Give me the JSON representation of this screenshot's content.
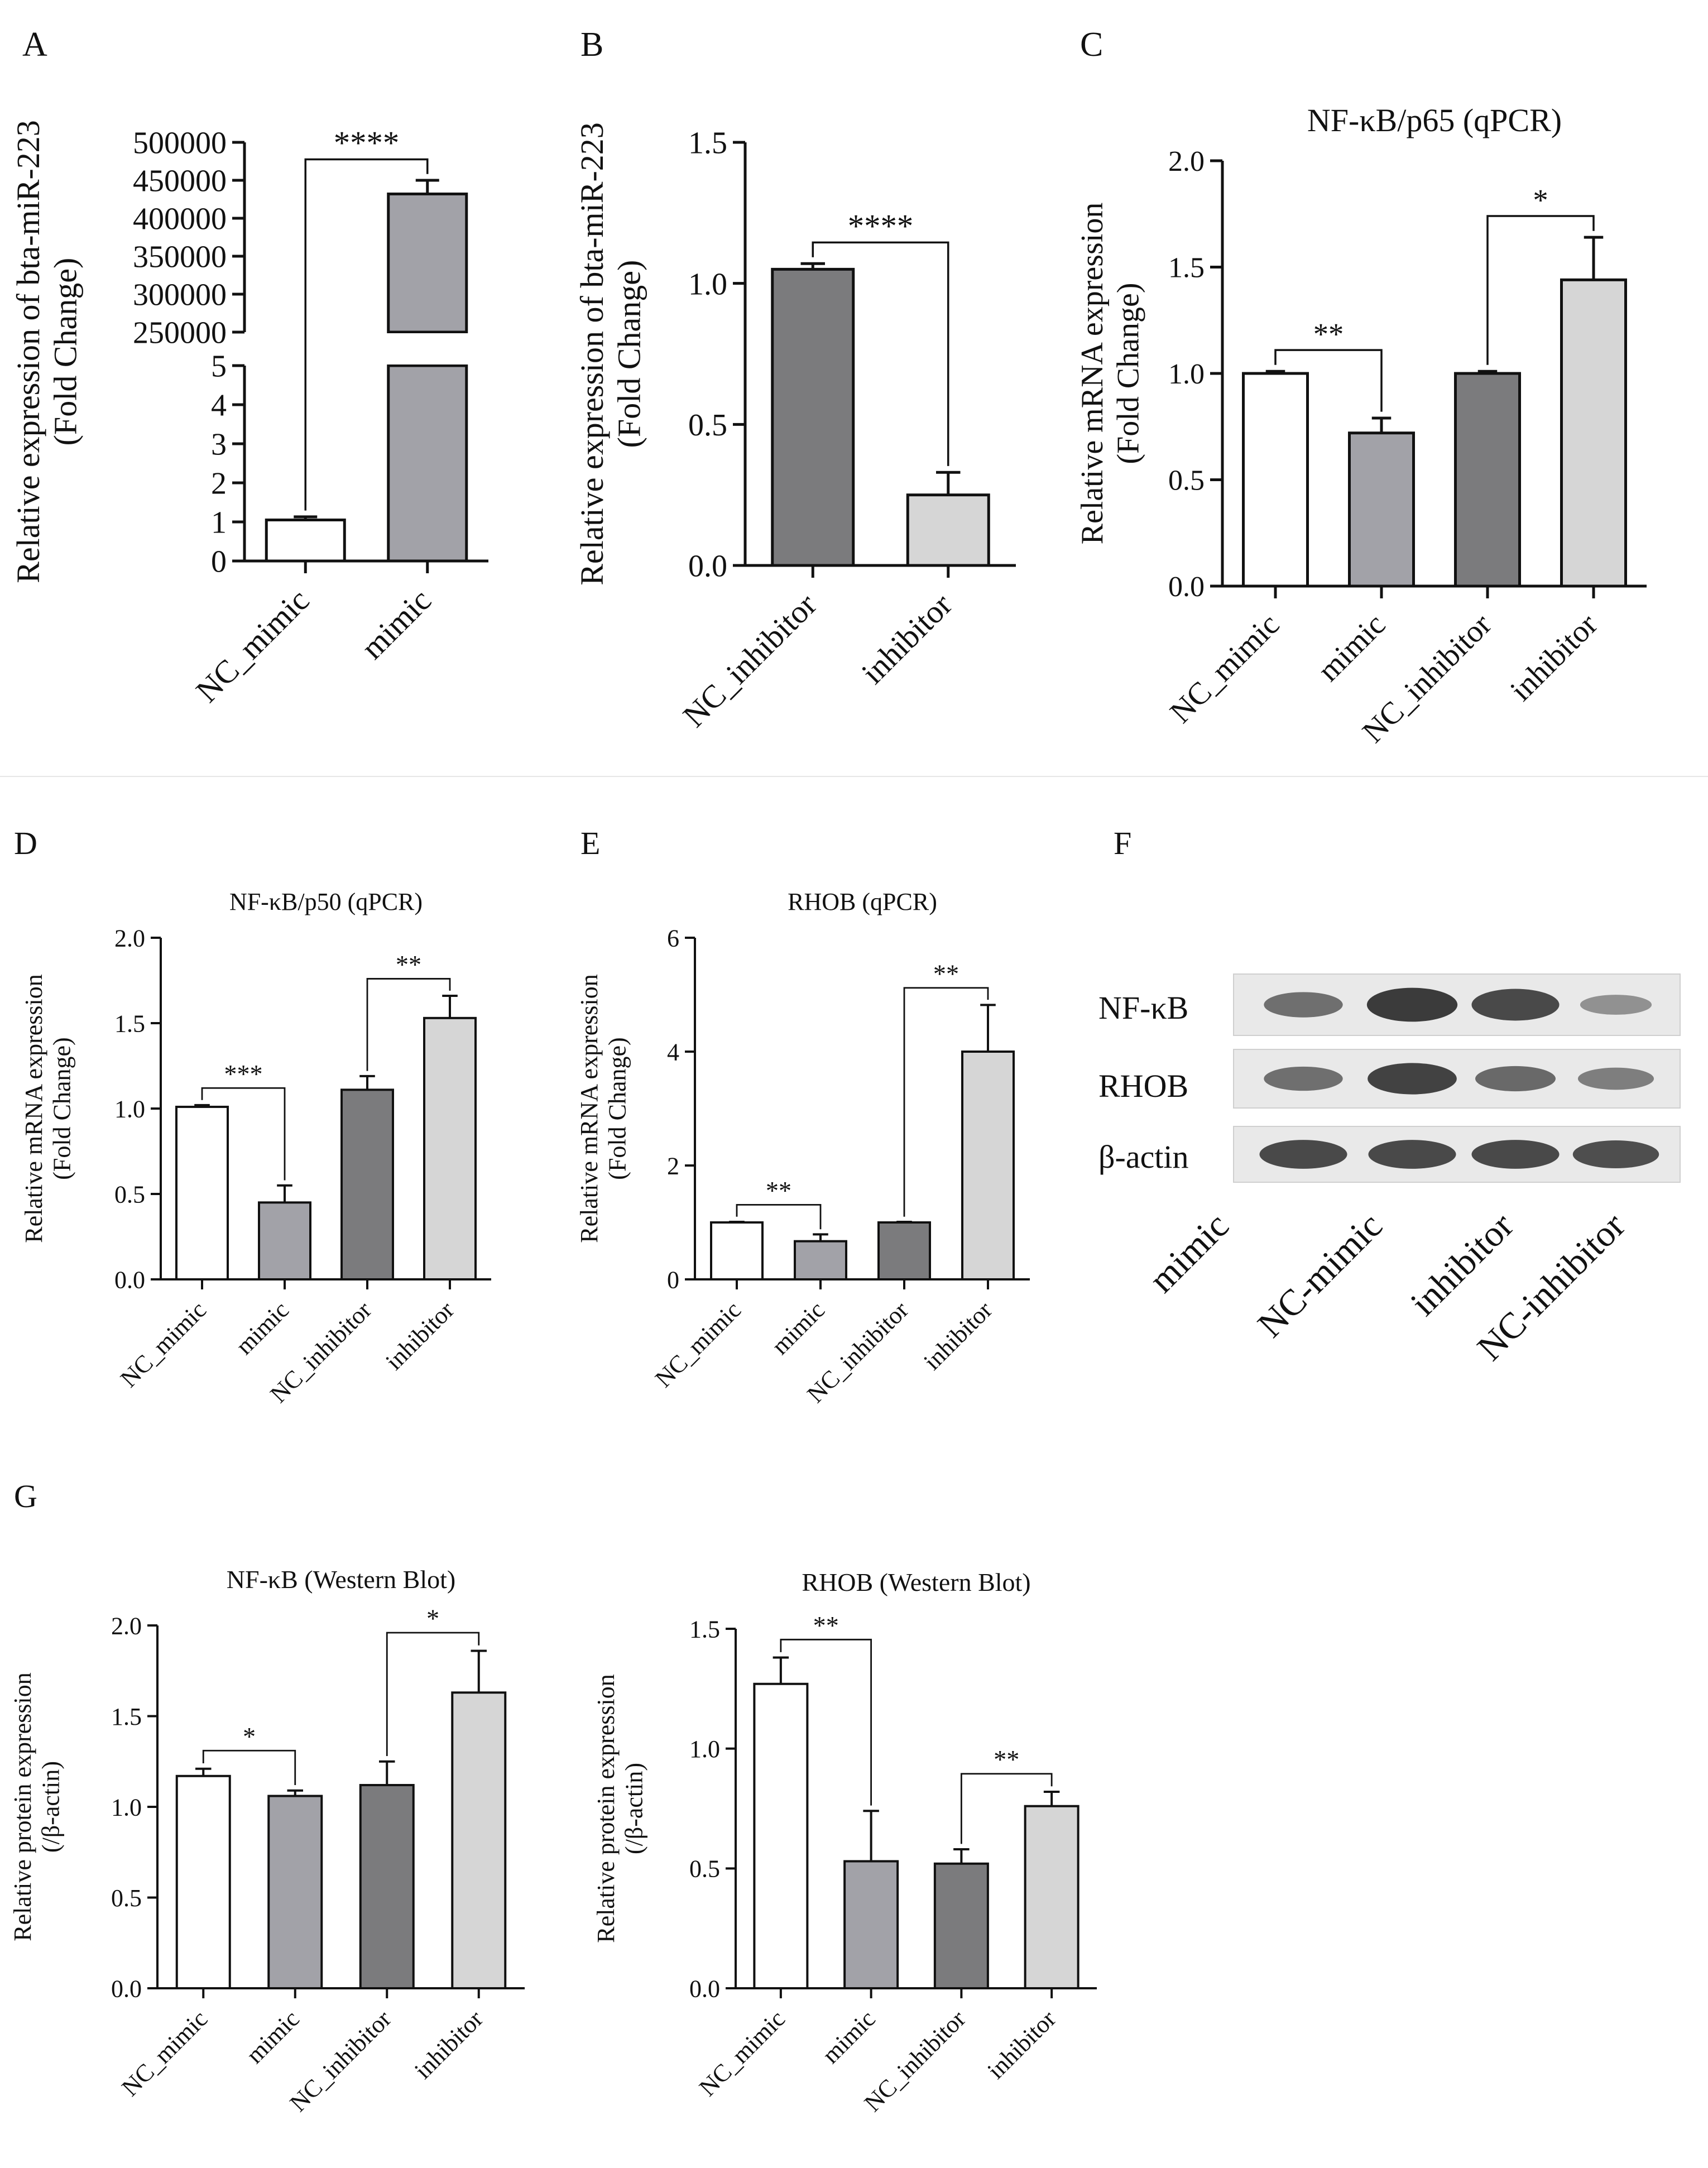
{
  "panel_labels": {
    "A": "A",
    "B": "B",
    "C": "C",
    "D": "D",
    "E": "E",
    "F": "F",
    "G": "G"
  },
  "colors": {
    "NC_mimic": "#ffffff",
    "mimic": "#a2a2a8",
    "NC_inhibitor": "#7b7b7d",
    "inhibitor": "#d6d6d6",
    "axis": "#111111",
    "blot_bg": "#e9e9e9",
    "band": "#2a2a2a"
  },
  "chart_data": [
    {
      "id": "A",
      "type": "bar",
      "title": "",
      "ylabel": [
        "Relative expression of bta-miR-223",
        "(Fold Change)"
      ],
      "categories": [
        "NC_mimic",
        "mimic"
      ],
      "values": [
        1.05,
        432000
      ],
      "errors": [
        0.08,
        18000
      ],
      "broken_axis": {
        "lower": [
          0,
          5
        ],
        "upper": [
          250000,
          500000
        ]
      },
      "yticks_lower": [
        "0",
        "1",
        "2",
        "3",
        "4",
        "5"
      ],
      "yticks_upper": [
        "250000",
        "300000",
        "350000",
        "400000",
        "450000",
        "500000"
      ],
      "significance": [
        {
          "from": 0,
          "to": 1,
          "label": "****"
        }
      ]
    },
    {
      "id": "B",
      "type": "bar",
      "title": "",
      "ylabel": [
        "Relative expression of bta-miR-223",
        "(Fold Change)"
      ],
      "categories": [
        "NC_inhibitor",
        "inhibitor"
      ],
      "values": [
        1.05,
        0.25
      ],
      "errors": [
        0.02,
        0.08
      ],
      "ylim": [
        0,
        1.5
      ],
      "yticks": [
        "0.0",
        "0.5",
        "1.0",
        "1.5"
      ],
      "significance": [
        {
          "from": 0,
          "to": 1,
          "label": "****"
        }
      ]
    },
    {
      "id": "C",
      "type": "bar",
      "title": "NF-κB/p65 (qPCR)",
      "ylabel": [
        "Relative mRNA expression",
        "(Fold Change)"
      ],
      "categories": [
        "NC_mimic",
        "mimic",
        "NC_inhibitor",
        "inhibitor"
      ],
      "values": [
        1.0,
        0.72,
        1.0,
        1.44
      ],
      "errors": [
        0.01,
        0.07,
        0.01,
        0.2
      ],
      "ylim": [
        0,
        2.0
      ],
      "yticks": [
        "0.0",
        "0.5",
        "1.0",
        "1.5",
        "2.0"
      ],
      "significance": [
        {
          "from": 0,
          "to": 1,
          "label": "**"
        },
        {
          "from": 2,
          "to": 3,
          "label": "*"
        }
      ]
    },
    {
      "id": "D",
      "type": "bar",
      "title": "NF-κB/p50 (qPCR)",
      "ylabel": [
        "Relative mRNA expression",
        "(Fold Change)"
      ],
      "categories": [
        "NC_mimic",
        "mimic",
        "NC_inhibitor",
        "inhibitor"
      ],
      "values": [
        1.01,
        0.45,
        1.11,
        1.53
      ],
      "errors": [
        0.01,
        0.1,
        0.08,
        0.13
      ],
      "ylim": [
        0,
        2.0
      ],
      "yticks": [
        "0.0",
        "0.5",
        "1.0",
        "1.5",
        "2.0"
      ],
      "significance": [
        {
          "from": 0,
          "to": 1,
          "label": "***"
        },
        {
          "from": 2,
          "to": 3,
          "label": "**"
        }
      ]
    },
    {
      "id": "E",
      "type": "bar",
      "title": "RHOB (qPCR)",
      "ylabel": [
        "Relative mRNA expression",
        "(Fold Change)"
      ],
      "categories": [
        "NC_mimic",
        "mimic",
        "NC_inhibitor",
        "inhibitor"
      ],
      "values": [
        1.0,
        0.67,
        1.0,
        4.0
      ],
      "errors": [
        0.01,
        0.12,
        0.01,
        0.82
      ],
      "ylim": [
        0,
        6
      ],
      "yticks": [
        "0",
        "2",
        "4",
        "6"
      ],
      "significance": [
        {
          "from": 0,
          "to": 1,
          "label": "**"
        },
        {
          "from": 2,
          "to": 3,
          "label": "**"
        }
      ]
    },
    {
      "id": "G1",
      "type": "bar",
      "title": "NF-κB (Western Blot)",
      "ylabel": [
        "Relative protein expression",
        "(/β-actin)"
      ],
      "categories": [
        "NC_mimic",
        "mimic",
        "NC_inhibitor",
        "inhibitor"
      ],
      "values": [
        1.17,
        1.06,
        1.12,
        1.63
      ],
      "errors": [
        0.04,
        0.03,
        0.13,
        0.23
      ],
      "ylim": [
        0,
        2.0
      ],
      "yticks": [
        "0.0",
        "0.5",
        "1.0",
        "1.5",
        "2.0"
      ],
      "significance": [
        {
          "from": 0,
          "to": 1,
          "label": "*"
        },
        {
          "from": 2,
          "to": 3,
          "label": "*"
        }
      ]
    },
    {
      "id": "G2",
      "type": "bar",
      "title": "RHOB (Western Blot)",
      "ylabel": [
        "Relative protein expression",
        "(/β-actin)"
      ],
      "categories": [
        "NC_mimic",
        "mimic",
        "NC_inhibitor",
        "inhibitor"
      ],
      "values": [
        1.27,
        0.53,
        0.52,
        0.76
      ],
      "errors": [
        0.11,
        0.21,
        0.06,
        0.06
      ],
      "ylim": [
        0,
        1.5
      ],
      "yticks": [
        "0.0",
        "0.5",
        "1.0",
        "1.5"
      ],
      "significance": [
        {
          "from": 0,
          "to": 1,
          "label": "**"
        },
        {
          "from": 2,
          "to": 3,
          "label": "**"
        }
      ]
    }
  ],
  "western_blot": {
    "rows": [
      "NF-κB",
      "RHOB",
      "β-actin"
    ],
    "lanes": [
      "mimic",
      "NC-mimic",
      "inhibitor",
      "NC-inhibitor"
    ],
    "band_intensity": [
      [
        0.55,
        0.95,
        0.85,
        0.3
      ],
      [
        0.55,
        0.9,
        0.6,
        0.45
      ],
      [
        0.85,
        0.85,
        0.85,
        0.8
      ]
    ]
  }
}
